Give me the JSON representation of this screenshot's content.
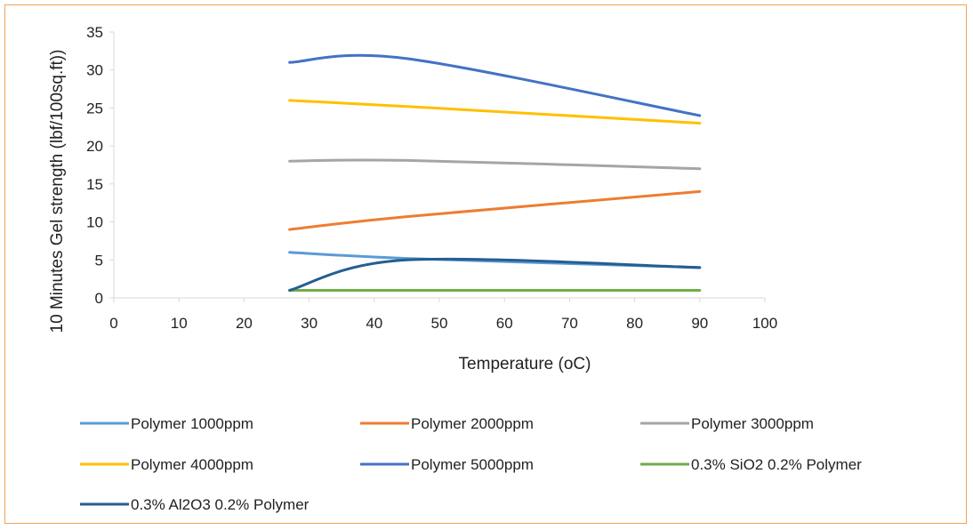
{
  "chart_data": {
    "type": "line",
    "title": "",
    "xlabel": "Temperature (oC)",
    "ylabel": "10 Minutes Gel strength (lbf/100sq.ft))",
    "xlim": [
      0,
      100
    ],
    "ylim": [
      0,
      35
    ],
    "xticks": [
      0,
      10,
      20,
      30,
      40,
      50,
      60,
      70,
      80,
      90,
      100
    ],
    "yticks": [
      0,
      5,
      10,
      15,
      20,
      25,
      30,
      35
    ],
    "xtick_labels": [
      "0",
      "10",
      "20",
      "30",
      "40",
      "50",
      "60",
      "70",
      "80",
      "90",
      "100"
    ],
    "ytick_labels": [
      "0",
      "5",
      "10",
      "15",
      "20",
      "25",
      "30",
      "35"
    ],
    "grid": false,
    "smooth": true,
    "legend_position": "bottom",
    "x": [
      27,
      45,
      90
    ],
    "series": [
      {
        "name": "Polymer 1000ppm",
        "color": "#5b9bd5",
        "values": [
          6,
          5.2,
          4
        ]
      },
      {
        "name": "Polymer 2000ppm",
        "color": "#ed7d31",
        "values": [
          9,
          10.7,
          14
        ]
      },
      {
        "name": "Polymer 3000ppm",
        "color": "#a5a5a5",
        "values": [
          18,
          18.1,
          17
        ]
      },
      {
        "name": "Polymer 4000ppm",
        "color": "#ffc000",
        "values": [
          26,
          25.2,
          23
        ]
      },
      {
        "name": "Polymer 5000ppm",
        "color": "#4472c4",
        "values": [
          31,
          31.5,
          24
        ]
      },
      {
        "name": "0.3% SiO2 0.2% Polymer",
        "color": "#70ad47",
        "values": [
          1,
          1,
          1
        ]
      },
      {
        "name": "0.3% Al2O3 0.2% Polymer",
        "color": "#255e91",
        "values": [
          1,
          5,
          4
        ]
      }
    ]
  }
}
